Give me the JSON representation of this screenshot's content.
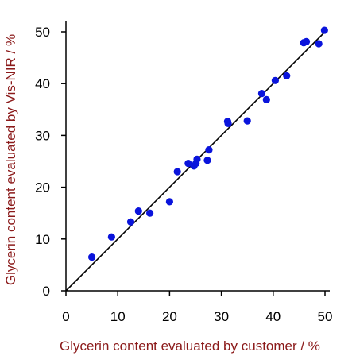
{
  "chart_data": {
    "type": "scatter",
    "title": "",
    "xlabel": "Glycerin content evaluated by customer / %",
    "ylabel": "Glycerin content evaluated by Vis-NIR / %",
    "xlim": [
      0,
      50
    ],
    "ylim": [
      0,
      50
    ],
    "x_ticks": [
      0,
      10,
      20,
      30,
      40,
      50
    ],
    "y_ticks": [
      0,
      10,
      20,
      30,
      40,
      50
    ],
    "grid": false,
    "colors": {
      "points": "#0a14dc",
      "line": "#000000",
      "axis_titles": "#8b1a1a"
    },
    "reference_line": {
      "x": [
        0,
        50
      ],
      "y": [
        0,
        50
      ]
    },
    "points": [
      {
        "x": 5.0,
        "y": 6.5
      },
      {
        "x": 8.8,
        "y": 10.4
      },
      {
        "x": 12.5,
        "y": 13.3
      },
      {
        "x": 14.0,
        "y": 15.4
      },
      {
        "x": 16.2,
        "y": 15.0
      },
      {
        "x": 20.0,
        "y": 17.2
      },
      {
        "x": 21.5,
        "y": 23.0
      },
      {
        "x": 23.6,
        "y": 24.6
      },
      {
        "x": 24.7,
        "y": 24.1
      },
      {
        "x": 25.1,
        "y": 24.6
      },
      {
        "x": 25.3,
        "y": 25.4
      },
      {
        "x": 27.3,
        "y": 25.2
      },
      {
        "x": 27.6,
        "y": 27.2
      },
      {
        "x": 31.2,
        "y": 32.7
      },
      {
        "x": 31.3,
        "y": 32.3
      },
      {
        "x": 35.0,
        "y": 32.8
      },
      {
        "x": 37.8,
        "y": 38.1
      },
      {
        "x": 38.7,
        "y": 36.9
      },
      {
        "x": 40.4,
        "y": 40.6
      },
      {
        "x": 42.6,
        "y": 41.5
      },
      {
        "x": 45.9,
        "y": 47.9
      },
      {
        "x": 46.4,
        "y": 48.1
      },
      {
        "x": 48.8,
        "y": 47.7
      },
      {
        "x": 49.9,
        "y": 50.3
      }
    ]
  }
}
